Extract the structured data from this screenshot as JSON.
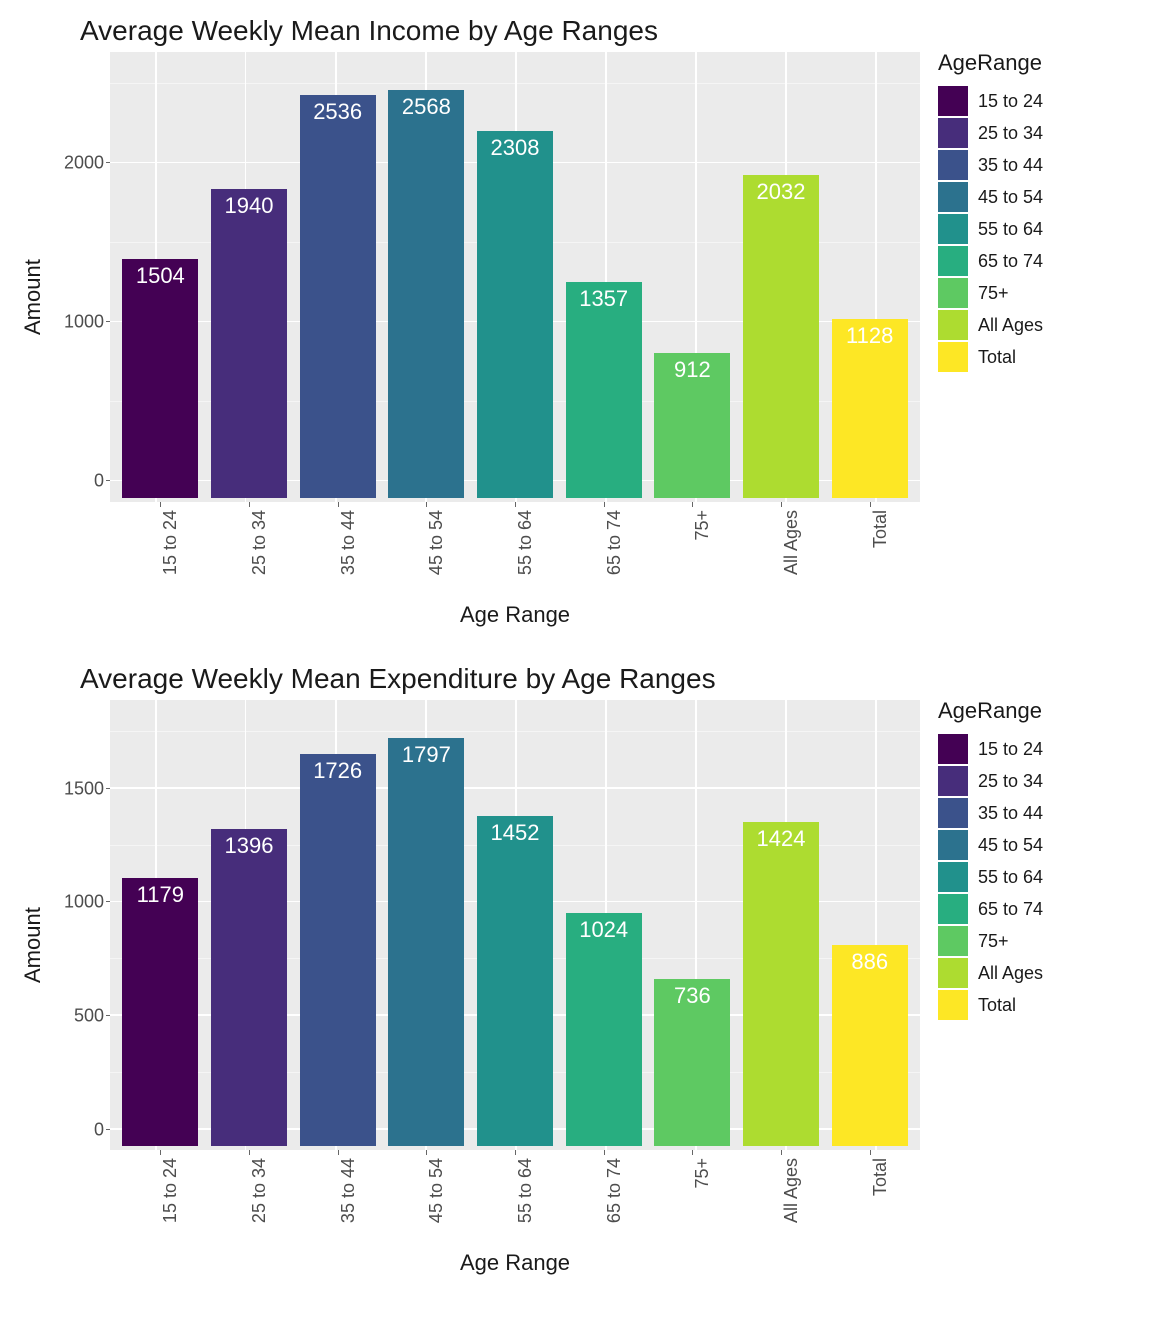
{
  "background_color": "#ffffff",
  "panel_color": "#ebebeb",
  "grid_color": "#ffffff",
  "axis_text_color": "#4d4d4d",
  "title_color": "#1a1a1a",
  "bar_label_color": "#ffffff",
  "font_family": "Arial",
  "title_fontsize": 28,
  "axis_label_fontsize": 22,
  "tick_fontsize": 18,
  "bar_label_fontsize": 22,
  "legend_title_fontsize": 22,
  "legend_label_fontsize": 18,
  "categories": [
    "15 to 24",
    "25 to 34",
    "35 to 44",
    "45 to 54",
    "55 to 64",
    "65 to 74",
    "75+",
    "All Ages",
    "Total"
  ],
  "colors": [
    "#440154",
    "#472d7b",
    "#3b528b",
    "#2c728e",
    "#21918c",
    "#28ae80",
    "#5ec962",
    "#addc30",
    "#fde725"
  ],
  "legend_title": "AgeRange",
  "bar_width": 0.86,
  "charts": [
    {
      "title": "Average Weekly Mean Income by Age Ranges",
      "ylabel": "Amount",
      "xlabel": "Age Range",
      "values": [
        1504,
        1940,
        2536,
        2568,
        2308,
        1357,
        912,
        2032,
        1128
      ],
      "ylim": [
        -130,
        2700
      ],
      "yticks": [
        0,
        1000,
        2000
      ],
      "yminor": [
        500,
        1500,
        2500
      ]
    },
    {
      "title": "Average Weekly Mean Expenditure by Age Ranges",
      "ylabel": "Amount",
      "xlabel": "Age Range",
      "values": [
        1179,
        1396,
        1726,
        1797,
        1452,
        1024,
        736,
        1424,
        886
      ],
      "ylim": [
        -90,
        1890
      ],
      "yticks": [
        0,
        500,
        1000,
        1500
      ],
      "yminor": [
        250,
        750,
        1250,
        1750
      ]
    }
  ]
}
